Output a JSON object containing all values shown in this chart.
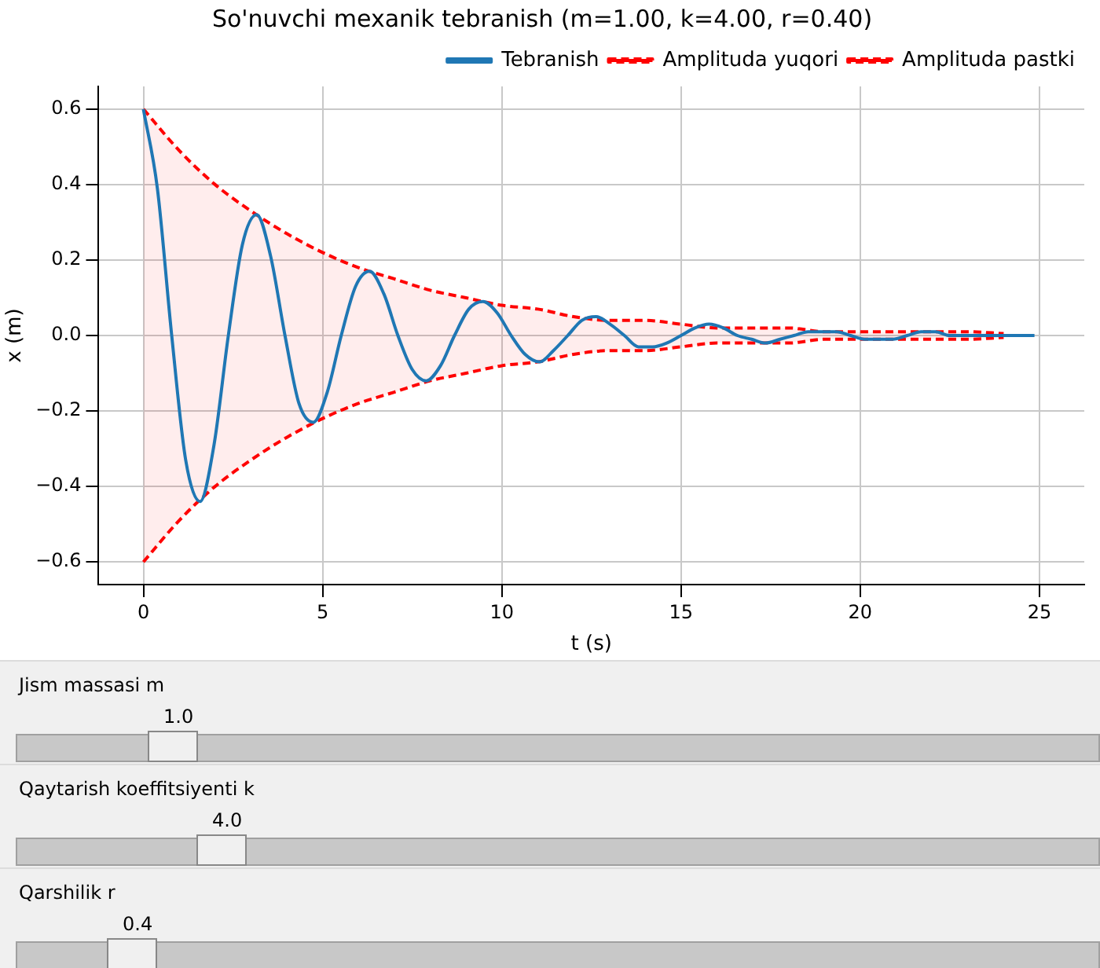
{
  "chart_data": {
    "type": "line",
    "title": "So'nuvchi mexanik tebranish (m=1.00, k=4.00, r=0.40)",
    "xlabel": "t (s)",
    "ylabel": "x (m)",
    "xlim": [
      -1.25,
      26.25
    ],
    "xticks": [
      0,
      5,
      10,
      15,
      20,
      25
    ],
    "ylim": [
      -0.66,
      0.66
    ],
    "yticks": [
      {
        "value": -0.6,
        "label": "−0.6"
      },
      {
        "value": -0.4,
        "label": "−0.4"
      },
      {
        "value": -0.2,
        "label": "−0.2"
      },
      {
        "value": 0,
        "label": "0.0"
      },
      0.2,
      0.4,
      0.6
    ],
    "grid": true,
    "legend": "top right",
    "marker": "none",
    "series": [
      {
        "name": "Tebranish",
        "color": "#1f77b4",
        "line_style": "solid",
        "x": [
          0,
          0.39,
          0.79,
          1.18,
          1.58,
          1.97,
          2.37,
          2.76,
          3.16,
          3.55,
          3.95,
          4.34,
          4.74,
          5.13,
          5.52,
          5.92,
          6.31,
          6.71,
          7.1,
          7.5,
          7.89,
          8.29,
          8.68,
          9.08,
          9.47,
          9.87,
          10.26,
          10.65,
          11.05,
          11.44,
          11.84,
          12.23,
          12.63,
          13.02,
          13.42,
          13.81,
          14.21,
          14.6,
          15.0,
          15.39,
          15.78,
          16.18,
          16.57,
          16.97,
          17.36,
          17.76,
          18.15,
          18.55,
          18.94,
          19.34,
          19.73,
          20.12,
          20.52,
          20.91,
          21.31,
          21.7,
          22.1,
          22.49,
          22.89,
          23.28,
          23.68,
          24.07,
          24.47,
          24.86
        ],
        "values": [
          0.6,
          0.39,
          0,
          -0.33,
          -0.44,
          -0.29,
          0,
          0.24,
          0.32,
          0.21,
          0,
          -0.18,
          -0.23,
          -0.15,
          0,
          0.13,
          0.17,
          0.11,
          0,
          -0.09,
          -0.12,
          -0.08,
          0,
          0.07,
          0.09,
          0.06,
          0,
          -0.05,
          -0.07,
          -0.04,
          0,
          0.04,
          0.05,
          0.03,
          0,
          -0.03,
          -0.03,
          -0.02,
          0,
          0.02,
          0.03,
          0.02,
          0,
          -0.01,
          -0.02,
          -0.01,
          0,
          0.01,
          0.01,
          0.01,
          0,
          -0.01,
          -0.01,
          -0.01,
          0,
          0.01,
          0.01,
          0,
          0,
          0,
          0,
          0,
          0,
          0
        ]
      },
      {
        "name": "Amplituda yuqori",
        "color": "#ff0000",
        "line_style": "dashed",
        "x": [
          0,
          1,
          2,
          3,
          4,
          5,
          6,
          7,
          8,
          9,
          10,
          11,
          12,
          13,
          14,
          15,
          16,
          17,
          18,
          19,
          20,
          21,
          22,
          23,
          24
        ],
        "values": [
          0.6,
          0.49,
          0.4,
          0.33,
          0.27,
          0.22,
          0.18,
          0.15,
          0.12,
          0.1,
          0.08,
          0.07,
          0.05,
          0.04,
          0.04,
          0.03,
          0.02,
          0.02,
          0.02,
          0.01,
          0.01,
          0.01,
          0.01,
          0.01,
          0.005
        ],
        "lower": [
          -0.6,
          -0.49,
          -0.4,
          -0.33,
          -0.27,
          -0.22,
          -0.18,
          -0.15,
          -0.12,
          -0.1,
          -0.08,
          -0.07,
          -0.05,
          -0.04,
          -0.04,
          -0.03,
          -0.02,
          -0.02,
          -0.02,
          -0.01,
          -0.01,
          -0.01,
          -0.01,
          -0.01,
          -0.005
        ],
        "upper": [
          0.6,
          0.49,
          0.4,
          0.33,
          0.27,
          0.22,
          0.18,
          0.15,
          0.12,
          0.1,
          0.08,
          0.07,
          0.05,
          0.04,
          0.04,
          0.03,
          0.02,
          0.02,
          0.02,
          0.01,
          0.01,
          0.01,
          0.01,
          0.01,
          0.005
        ]
      },
      {
        "name": "Amplituda pastki",
        "color": "#ff0000",
        "line_style": "dashed",
        "x": [
          0,
          1,
          2,
          3,
          4,
          5,
          6,
          7,
          8,
          9,
          10,
          11,
          12,
          13,
          14,
          15,
          16,
          17,
          18,
          19,
          20,
          21,
          22,
          23,
          24
        ],
        "values": [
          -0.6,
          -0.49,
          -0.4,
          -0.33,
          -0.27,
          -0.22,
          -0.18,
          -0.15,
          -0.12,
          -0.1,
          -0.08,
          -0.07,
          -0.05,
          -0.04,
          -0.04,
          -0.03,
          -0.02,
          -0.02,
          -0.02,
          -0.01,
          -0.01,
          -0.01,
          -0.01,
          -0.01,
          -0.005
        ]
      }
    ],
    "annotations": [
      "Jism massasi m",
      "1.0",
      "Qaytarish koeffitsiyenti k",
      "4.0",
      "Qarshilik r",
      "0.4"
    ]
  }
}
